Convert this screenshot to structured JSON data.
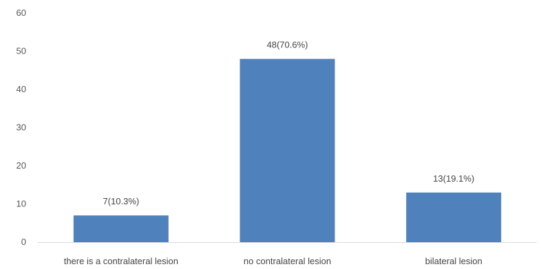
{
  "chart_data": {
    "type": "bar",
    "categories": [
      "there is a contralateral lesion",
      "no contralateral lesion",
      "bilateral lesion"
    ],
    "values": [
      7,
      48,
      13
    ],
    "data_labels": [
      "7(10.3%)",
      "48(70.6%)",
      "13(19.1%)"
    ],
    "ylim": [
      0,
      60
    ],
    "yticks": [
      0,
      10,
      20,
      30,
      40,
      50,
      60
    ],
    "ytick_labels": [
      "0",
      "10",
      "20",
      "30",
      "40",
      "50",
      "60"
    ],
    "title": "",
    "xlabel": "",
    "ylabel": "",
    "grid": false,
    "legend": "none",
    "colors": {
      "bar": "#4f81bd",
      "axis": "#d9d9d9",
      "text": "#444444"
    }
  }
}
